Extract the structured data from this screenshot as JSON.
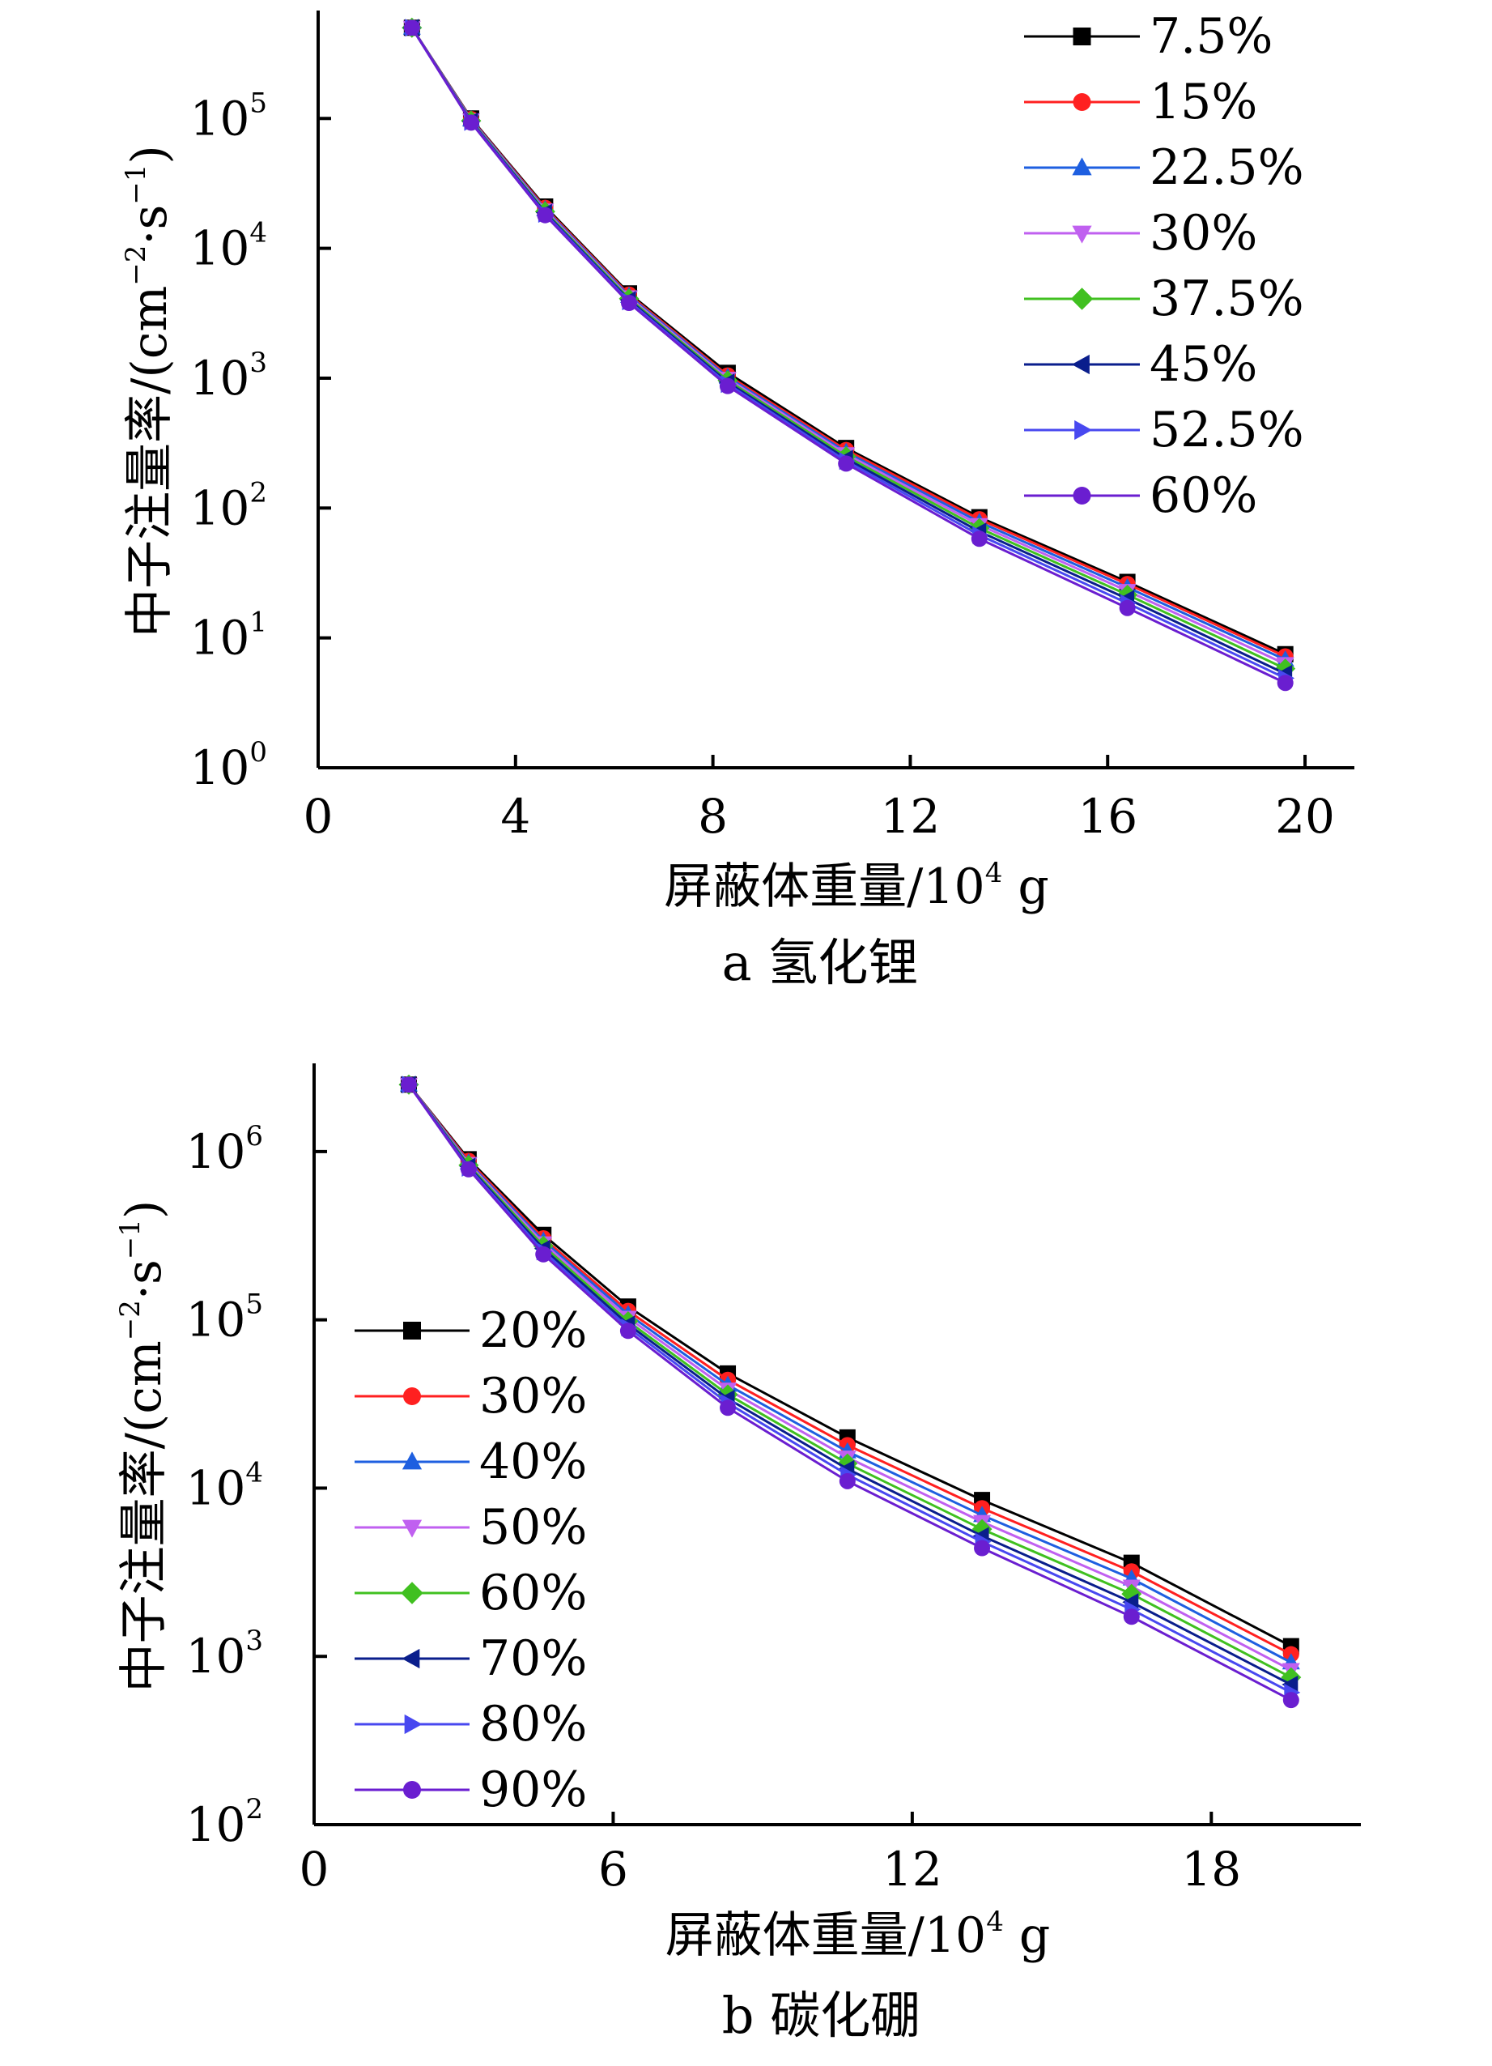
{
  "chart_data": [
    {
      "type": "line",
      "y_scale": "log",
      "caption": "a 氢化锂",
      "xlabel": "屏蔽体重量/10",
      "xlabel_sup": "4",
      "xlabel_unit": "g",
      "ylabel": "中子注量率/(cm",
      "ylabel_sup1": "−2",
      "ylabel_mid": "·s",
      "ylabel_sup2": "−1",
      "ylabel_end": ")",
      "xlim": [
        0,
        21
      ],
      "ylim_exp": [
        0,
        5.8
      ],
      "x_ticks": [
        0,
        4,
        8,
        12,
        16,
        20
      ],
      "x_tick_labels": [
        "0",
        "4",
        "8",
        "12",
        "16",
        "20"
      ],
      "y_tick_exps": [
        0,
        1,
        2,
        3,
        4,
        5
      ],
      "y_tick_labels": [
        {
          "base": "10",
          "exp": "0"
        },
        {
          "base": "10",
          "exp": "1"
        },
        {
          "base": "10",
          "exp": "2"
        },
        {
          "base": "10",
          "exp": "3"
        },
        {
          "base": "10",
          "exp": "4"
        },
        {
          "base": "10",
          "exp": "5"
        }
      ],
      "legend_position": "top-right",
      "x": [
        1.9,
        3.1,
        4.6,
        6.3,
        8.3,
        10.7,
        13.4,
        16.4,
        19.6
      ],
      "series": [
        {
          "name": "7.5%",
          "color": "#000000",
          "marker": "square",
          "values": [
            500000,
            100000,
            21000,
            4500,
            1100,
            290,
            85,
            27,
            7.5
          ]
        },
        {
          "name": "15%",
          "color": "#ff2020",
          "marker": "circle",
          "values": [
            500000,
            99000,
            20500,
            4400,
            1050,
            280,
            82,
            26,
            7.2
          ]
        },
        {
          "name": "22.5%",
          "color": "#1e5fe0",
          "marker": "triangle-up",
          "values": [
            500000,
            98000,
            20000,
            4300,
            1020,
            270,
            78,
            24.5,
            6.8
          ]
        },
        {
          "name": "30%",
          "color": "#c060f0",
          "marker": "triangle-down",
          "values": [
            500000,
            97000,
            19600,
            4200,
            990,
            260,
            74,
            23,
            6.3
          ]
        },
        {
          "name": "37.5%",
          "color": "#40c020",
          "marker": "diamond",
          "values": [
            500000,
            96000,
            19200,
            4100,
            960,
            250,
            70,
            21.5,
            5.8
          ]
        },
        {
          "name": "45%",
          "color": "#0a1e8c",
          "marker": "triangle-left",
          "values": [
            500000,
            95000,
            18800,
            4000,
            930,
            240,
            66,
            20,
            5.3
          ]
        },
        {
          "name": "52.5%",
          "color": "#4848f0",
          "marker": "triangle-right",
          "values": [
            500000,
            94000,
            18400,
            3900,
            900,
            230,
            62,
            18.5,
            4.9
          ]
        },
        {
          "name": "60%",
          "color": "#6a1ed0",
          "marker": "circle",
          "values": [
            500000,
            93000,
            18000,
            3800,
            870,
            220,
            58,
            17,
            4.5
          ]
        }
      ]
    },
    {
      "type": "line",
      "y_scale": "log",
      "caption": "b 碳化硼",
      "xlabel": "屏蔽体重量/10",
      "xlabel_sup": "4",
      "xlabel_unit": "g",
      "ylabel": "中子注量率/(cm",
      "ylabel_sup1": "−2",
      "ylabel_mid": "·s",
      "ylabel_sup2": "−1",
      "ylabel_end": ")",
      "xlim": [
        0,
        21
      ],
      "ylim_exp": [
        2,
        6.5
      ],
      "x_ticks": [
        0,
        6,
        12,
        18
      ],
      "x_tick_labels": [
        "0",
        "6",
        "12",
        "18"
      ],
      "y_tick_exps": [
        2,
        3,
        4,
        5,
        6
      ],
      "y_tick_labels": [
        {
          "base": "10",
          "exp": "2"
        },
        {
          "base": "10",
          "exp": "3"
        },
        {
          "base": "10",
          "exp": "4"
        },
        {
          "base": "10",
          "exp": "5"
        },
        {
          "base": "10",
          "exp": "6"
        }
      ],
      "legend_position": "middle-left",
      "x": [
        1.9,
        3.1,
        4.6,
        6.3,
        8.3,
        10.7,
        13.4,
        16.4,
        19.6
      ],
      "series": [
        {
          "name": "20%",
          "color": "#000000",
          "marker": "square",
          "values": [
            2500000,
            900000,
            320000,
            120000,
            48000,
            20000,
            8500,
            3600,
            1150
          ]
        },
        {
          "name": "30%",
          "color": "#ff2020",
          "marker": "circle",
          "values": [
            2500000,
            880000,
            305000,
            113000,
            44000,
            18000,
            7600,
            3200,
            1030
          ]
        },
        {
          "name": "40%",
          "color": "#1e5fe0",
          "marker": "triangle-up",
          "values": [
            2500000,
            860000,
            295000,
            108000,
            41000,
            16500,
            6900,
            2900,
            920
          ]
        },
        {
          "name": "50%",
          "color": "#c060f0",
          "marker": "triangle-down",
          "values": [
            2500000,
            845000,
            285000,
            103000,
            38500,
            15200,
            6300,
            2600,
            830
          ]
        },
        {
          "name": "60%",
          "color": "#40c020",
          "marker": "diamond",
          "values": [
            2500000,
            830000,
            275000,
            98000,
            36000,
            14000,
            5700,
            2350,
            750
          ]
        },
        {
          "name": "70%",
          "color": "#0a1e8c",
          "marker": "triangle-left",
          "values": [
            2500000,
            815000,
            265000,
            94000,
            34000,
            13000,
            5200,
            2100,
            680
          ]
        },
        {
          "name": "80%",
          "color": "#4848f0",
          "marker": "triangle-right",
          "values": [
            2500000,
            800000,
            255000,
            90000,
            32000,
            12000,
            4800,
            1900,
            610
          ]
        },
        {
          "name": "90%",
          "color": "#6a1ed0",
          "marker": "circle",
          "values": [
            2500000,
            785000,
            245000,
            86000,
            30000,
            11000,
            4400,
            1720,
            550
          ]
        }
      ]
    }
  ]
}
